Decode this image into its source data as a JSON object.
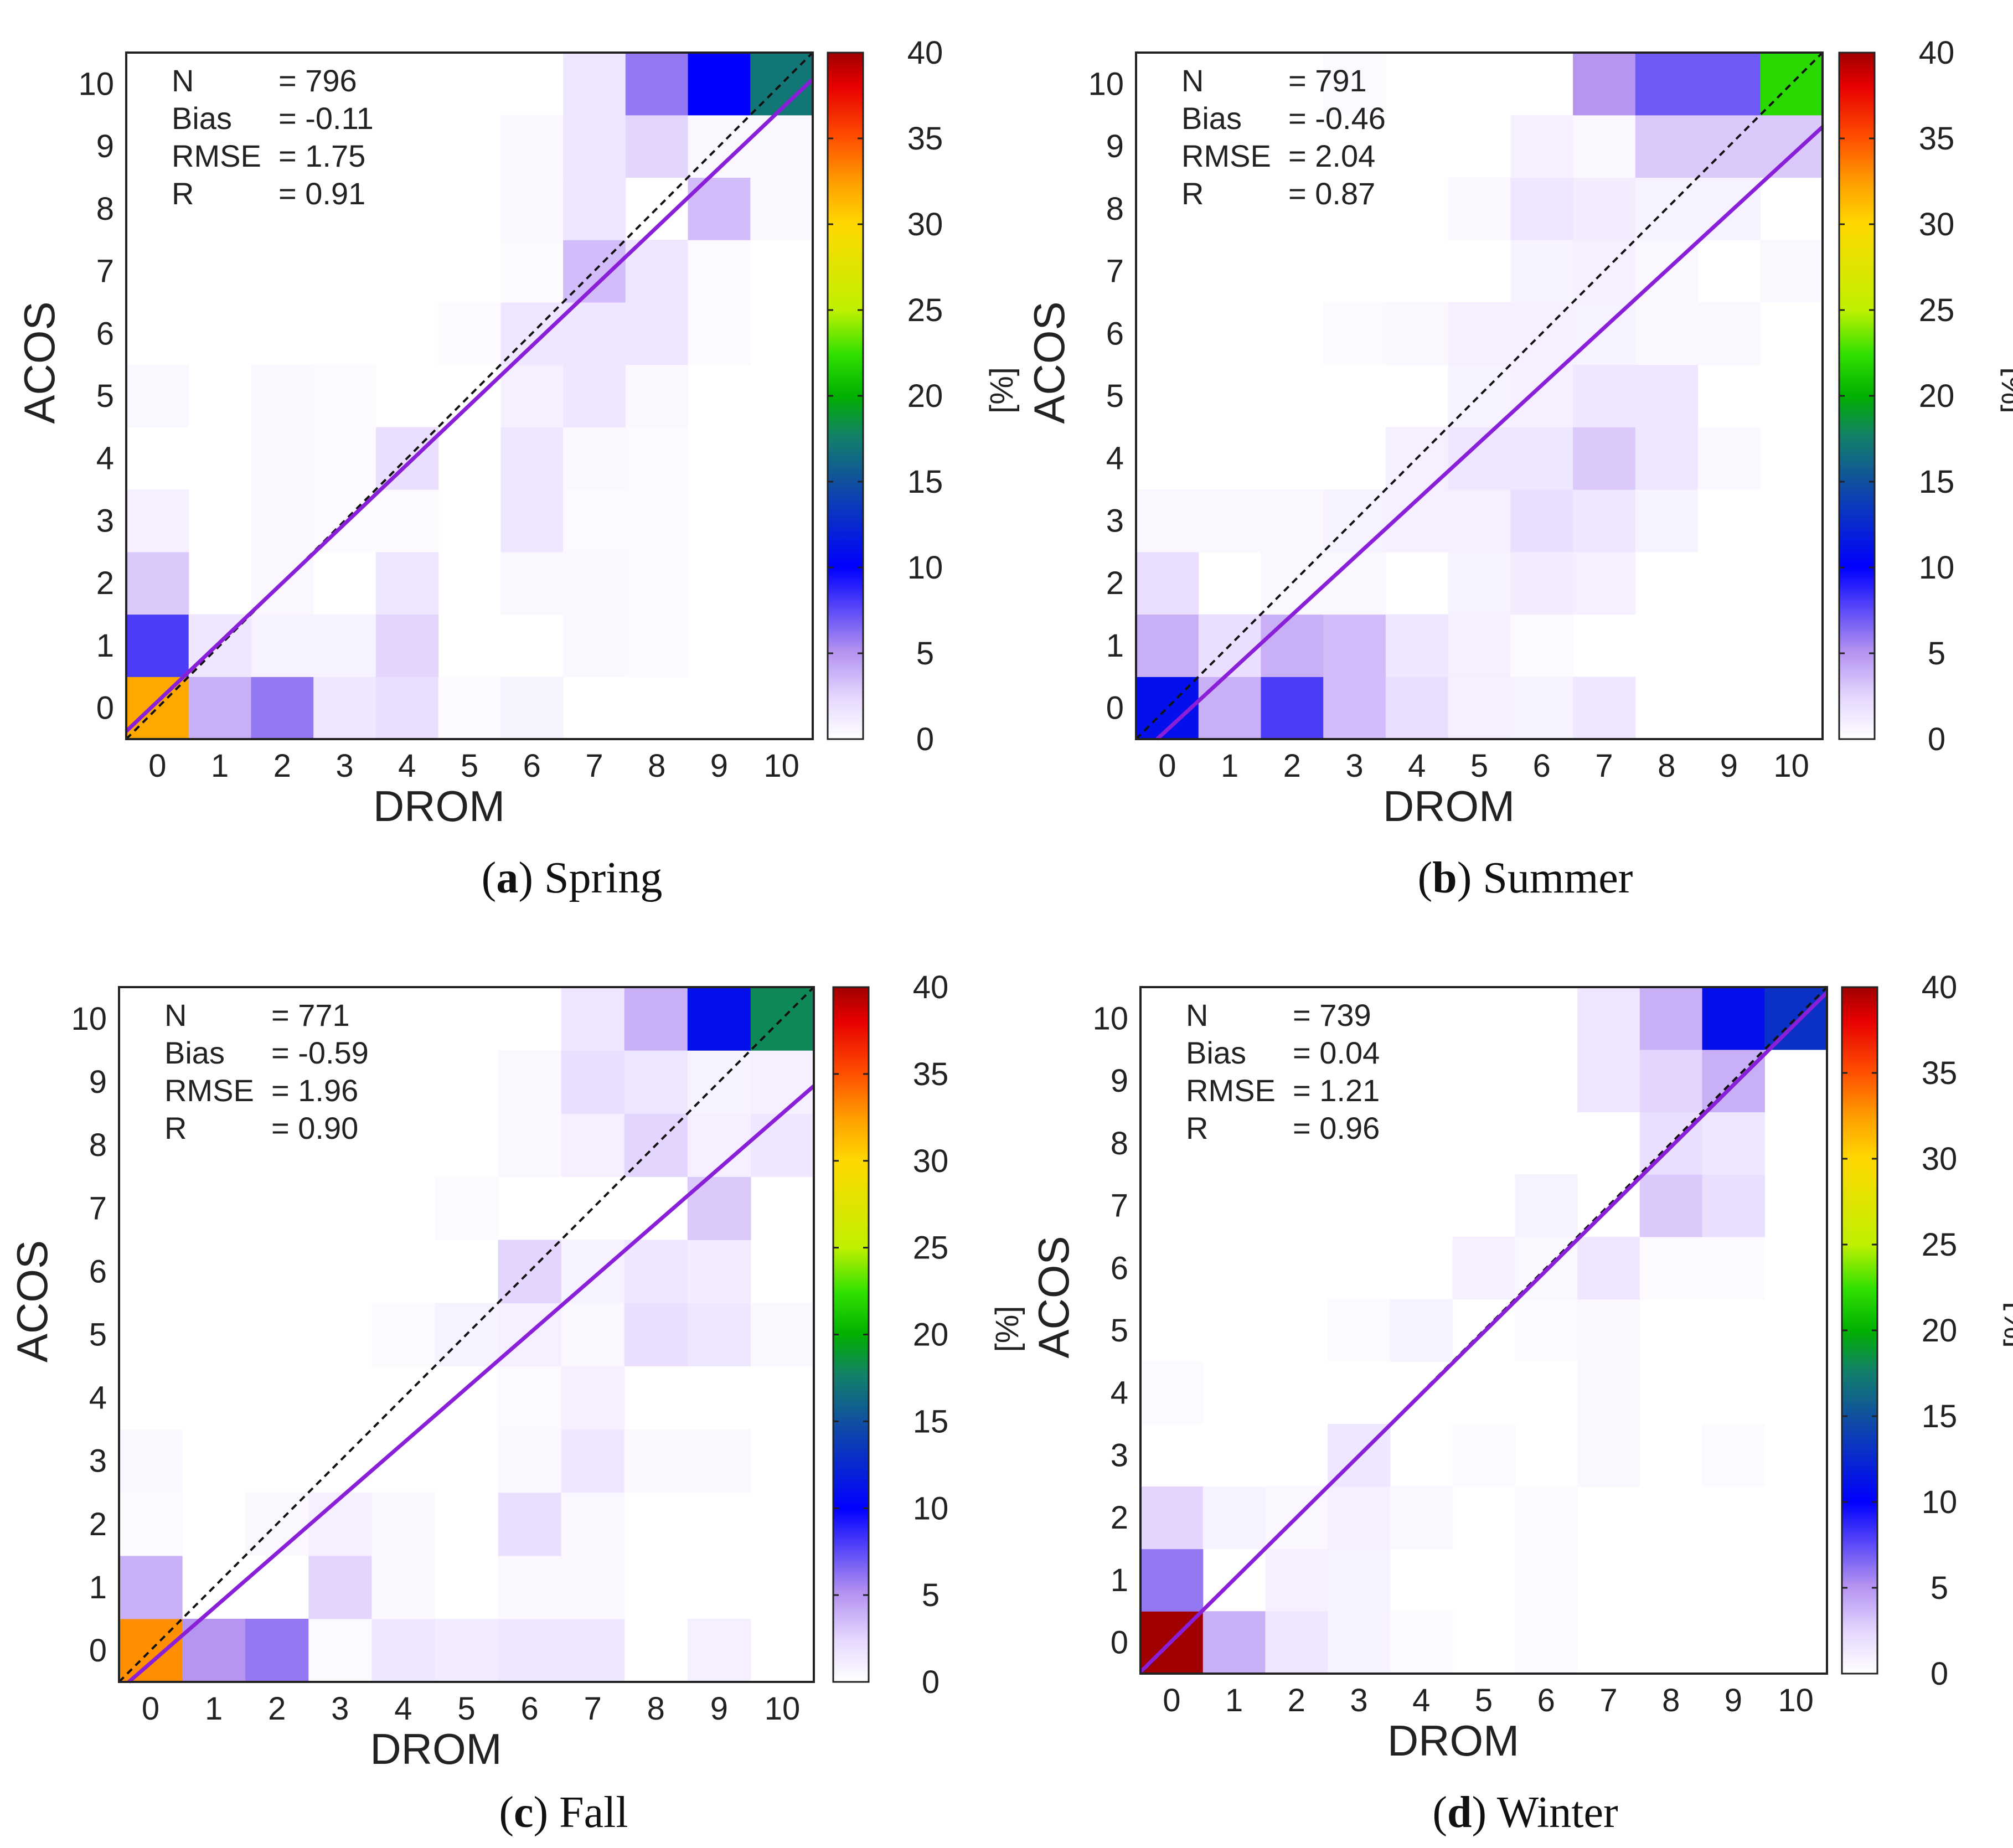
{
  "colorbar": {
    "ticks": [
      "0",
      "5",
      "10",
      "15",
      "20",
      "25",
      "30",
      "35",
      "40"
    ],
    "label": "[%]",
    "range": [
      0,
      40
    ]
  },
  "axis_ticks": [
    "0",
    "1",
    "2",
    "3",
    "4",
    "5",
    "6",
    "7",
    "8",
    "9",
    "10"
  ],
  "stat_labels": {
    "n": "N",
    "bias": "Bias",
    "rmse": "RMSE",
    "r": "R"
  },
  "chart_data": [
    {
      "type": "heatmap",
      "caption_letter": "a",
      "caption_name": "Spring",
      "xlabel": "DROM",
      "ylabel": "ACOS",
      "stats": {
        "n": "= 796",
        "bias": "= -0.11",
        "rmse": "= 1.75",
        "r": "= 0.91"
      },
      "fit": {
        "slope": 0.95,
        "intercept": 0.1
      },
      "cells": [
        [
          0,
          0,
          32
        ],
        [
          1,
          0,
          4
        ],
        [
          2,
          0,
          6
        ],
        [
          3,
          0,
          1.5
        ],
        [
          4,
          0,
          2
        ],
        [
          5,
          0,
          0.3
        ],
        [
          6,
          0,
          0.7
        ],
        [
          0,
          1,
          8
        ],
        [
          1,
          1,
          1.5
        ],
        [
          2,
          1,
          0.8
        ],
        [
          3,
          1,
          0.8
        ],
        [
          4,
          1,
          2.5
        ],
        [
          7,
          1,
          0.5
        ],
        [
          8,
          1,
          0.3
        ],
        [
          0,
          2,
          3
        ],
        [
          2,
          2,
          0.5
        ],
        [
          4,
          2,
          1.5
        ],
        [
          6,
          2,
          0.5
        ],
        [
          7,
          2,
          0.5
        ],
        [
          8,
          2,
          0.3
        ],
        [
          0,
          3,
          1
        ],
        [
          2,
          3,
          0.5
        ],
        [
          3,
          3,
          0.3
        ],
        [
          4,
          3,
          0.3
        ],
        [
          6,
          3,
          1.5
        ],
        [
          7,
          3,
          0.3
        ],
        [
          8,
          3,
          0.3
        ],
        [
          2,
          4,
          0.5
        ],
        [
          3,
          4,
          0.3
        ],
        [
          4,
          4,
          2
        ],
        [
          6,
          4,
          1.5
        ],
        [
          7,
          4,
          0.5
        ],
        [
          8,
          4,
          0.3
        ],
        [
          0,
          5,
          0.5
        ],
        [
          2,
          5,
          0.5
        ],
        [
          3,
          5,
          0.3
        ],
        [
          6,
          5,
          1
        ],
        [
          7,
          5,
          1.5
        ],
        [
          8,
          5,
          0.5
        ],
        [
          5,
          6,
          0.3
        ],
        [
          6,
          6,
          1.5
        ],
        [
          7,
          6,
          1.5
        ],
        [
          8,
          6,
          1.5
        ],
        [
          9,
          6,
          0.3
        ],
        [
          6,
          7,
          0.3
        ],
        [
          7,
          7,
          3.5
        ],
        [
          8,
          7,
          1.5
        ],
        [
          9,
          7,
          0.3
        ],
        [
          6,
          8,
          0.5
        ],
        [
          7,
          8,
          1.5
        ],
        [
          9,
          8,
          3.5
        ],
        [
          10,
          8,
          0.5
        ],
        [
          6,
          9,
          0.5
        ],
        [
          7,
          9,
          1.5
        ],
        [
          8,
          9,
          2.5
        ],
        [
          9,
          9,
          0.5
        ],
        [
          10,
          9,
          0.5
        ],
        [
          7,
          10,
          1.5
        ],
        [
          8,
          10,
          6
        ],
        [
          9,
          10,
          10
        ],
        [
          10,
          10,
          17
        ]
      ]
    },
    {
      "type": "heatmap",
      "caption_letter": "b",
      "caption_name": "Summer",
      "xlabel": "DROM",
      "ylabel": "ACOS",
      "stats": {
        "n": "= 791",
        "bias": "= -0.46",
        "rmse": "= 2.04",
        "r": "= 0.87"
      },
      "fit": {
        "slope": 0.92,
        "intercept": -0.35
      },
      "cells": [
        [
          0,
          0,
          11
        ],
        [
          1,
          0,
          4
        ],
        [
          2,
          0,
          8
        ],
        [
          3,
          0,
          3.5
        ],
        [
          4,
          0,
          2
        ],
        [
          5,
          0,
          1
        ],
        [
          6,
          0,
          0.8
        ],
        [
          7,
          0,
          1.5
        ],
        [
          0,
          1,
          4
        ],
        [
          1,
          1,
          2
        ],
        [
          2,
          1,
          4
        ],
        [
          3,
          1,
          3.5
        ],
        [
          4,
          1,
          1.5
        ],
        [
          5,
          1,
          1
        ],
        [
          6,
          1,
          0.3
        ],
        [
          0,
          2,
          2
        ],
        [
          2,
          2,
          0.5
        ],
        [
          3,
          2,
          0.5
        ],
        [
          5,
          2,
          0.8
        ],
        [
          6,
          2,
          1.2
        ],
        [
          7,
          2,
          1
        ],
        [
          0,
          3,
          0.5
        ],
        [
          1,
          3,
          0.5
        ],
        [
          2,
          3,
          0.5
        ],
        [
          3,
          3,
          0.8
        ],
        [
          4,
          3,
          1
        ],
        [
          5,
          3,
          1
        ],
        [
          6,
          3,
          2
        ],
        [
          7,
          3,
          1.5
        ],
        [
          8,
          3,
          0.8
        ],
        [
          4,
          4,
          1
        ],
        [
          5,
          4,
          1.5
        ],
        [
          6,
          4,
          1.5
        ],
        [
          7,
          4,
          3
        ],
        [
          8,
          4,
          1.5
        ],
        [
          9,
          4,
          0.5
        ],
        [
          5,
          5,
          0.8
        ],
        [
          6,
          5,
          1
        ],
        [
          7,
          5,
          1.5
        ],
        [
          8,
          5,
          1.5
        ],
        [
          3,
          6,
          0.3
        ],
        [
          4,
          6,
          0.5
        ],
        [
          5,
          6,
          1
        ],
        [
          6,
          6,
          1
        ],
        [
          7,
          6,
          0.8
        ],
        [
          8,
          6,
          0.5
        ],
        [
          9,
          6,
          0.5
        ],
        [
          6,
          7,
          0.8
        ],
        [
          7,
          7,
          1
        ],
        [
          8,
          7,
          0.5
        ],
        [
          10,
          7,
          0.5
        ],
        [
          5,
          8,
          0.5
        ],
        [
          6,
          8,
          1.5
        ],
        [
          7,
          8,
          1.2
        ],
        [
          8,
          8,
          0.8
        ],
        [
          9,
          8,
          0.8
        ],
        [
          6,
          9,
          1
        ],
        [
          7,
          9,
          0.5
        ],
        [
          8,
          9,
          3
        ],
        [
          9,
          9,
          3
        ],
        [
          10,
          9,
          3
        ],
        [
          3,
          10,
          0.3
        ],
        [
          7,
          10,
          5
        ],
        [
          8,
          10,
          7
        ],
        [
          9,
          10,
          7
        ],
        [
          10,
          10,
          22
        ]
      ]
    },
    {
      "type": "heatmap",
      "caption_letter": "c",
      "caption_name": "Fall",
      "xlabel": "DROM",
      "ylabel": "ACOS",
      "stats": {
        "n": "= 771",
        "bias": "= -0.59",
        "rmse": "= 1.96",
        "r": "= 0.90"
      },
      "fit": {
        "slope": 0.87,
        "intercept": -0.2
      },
      "cells": [
        [
          0,
          0,
          33
        ],
        [
          1,
          0,
          5
        ],
        [
          2,
          0,
          6
        ],
        [
          3,
          0,
          0.3
        ],
        [
          4,
          0,
          1.5
        ],
        [
          5,
          0,
          1.2
        ],
        [
          6,
          0,
          1.5
        ],
        [
          7,
          0,
          1.5
        ],
        [
          9,
          0,
          1
        ],
        [
          0,
          1,
          4
        ],
        [
          3,
          1,
          2.5
        ],
        [
          4,
          1,
          0.5
        ],
        [
          6,
          1,
          0.5
        ],
        [
          7,
          1,
          0.5
        ],
        [
          0,
          2,
          0.3
        ],
        [
          2,
          2,
          0.5
        ],
        [
          3,
          2,
          1
        ],
        [
          4,
          2,
          0.5
        ],
        [
          6,
          2,
          2
        ],
        [
          7,
          2,
          0.5
        ],
        [
          0,
          3,
          0.5
        ],
        [
          6,
          3,
          0.5
        ],
        [
          7,
          3,
          1.5
        ],
        [
          8,
          3,
          0.5
        ],
        [
          9,
          3,
          0.5
        ],
        [
          6,
          4,
          0.3
        ],
        [
          7,
          4,
          1
        ],
        [
          4,
          5,
          0.3
        ],
        [
          5,
          5,
          0.8
        ],
        [
          6,
          5,
          1
        ],
        [
          7,
          5,
          0.5
        ],
        [
          8,
          5,
          2
        ],
        [
          9,
          5,
          1.5
        ],
        [
          10,
          5,
          0.5
        ],
        [
          6,
          6,
          2.5
        ],
        [
          7,
          6,
          0.8
        ],
        [
          8,
          6,
          1.5
        ],
        [
          9,
          6,
          1.2
        ],
        [
          5,
          7,
          0.3
        ],
        [
          9,
          7,
          3
        ],
        [
          6,
          8,
          0.5
        ],
        [
          7,
          8,
          1
        ],
        [
          8,
          8,
          2.5
        ],
        [
          9,
          8,
          1
        ],
        [
          10,
          8,
          1.5
        ],
        [
          6,
          9,
          0.5
        ],
        [
          7,
          9,
          2
        ],
        [
          8,
          9,
          1.5
        ],
        [
          9,
          9,
          0.8
        ],
        [
          10,
          9,
          1
        ],
        [
          7,
          10,
          1.5
        ],
        [
          8,
          10,
          4
        ],
        [
          9,
          10,
          11
        ],
        [
          10,
          10,
          18
        ]
      ]
    },
    {
      "type": "heatmap",
      "caption_letter": "d",
      "caption_name": "Winter",
      "xlabel": "DROM",
      "ylabel": "ACOS",
      "stats": {
        "n": "= 739",
        "bias": "= 0.04",
        "rmse": "= 1.21",
        "r": "= 0.96"
      },
      "fit": {
        "slope": 0.99,
        "intercept": 0.02
      },
      "cells": [
        [
          0,
          0,
          40
        ],
        [
          1,
          0,
          4
        ],
        [
          2,
          0,
          1.5
        ],
        [
          3,
          0,
          0.8
        ],
        [
          4,
          0,
          0.3
        ],
        [
          6,
          0,
          0.3
        ],
        [
          0,
          1,
          6
        ],
        [
          2,
          1,
          1
        ],
        [
          3,
          1,
          0.8
        ],
        [
          6,
          1,
          0.3
        ],
        [
          0,
          2,
          2.5
        ],
        [
          1,
          2,
          0.8
        ],
        [
          2,
          2,
          0.5
        ],
        [
          3,
          2,
          1
        ],
        [
          4,
          2,
          0.5
        ],
        [
          6,
          2,
          0.3
        ],
        [
          3,
          3,
          1.5
        ],
        [
          5,
          3,
          0.3
        ],
        [
          7,
          3,
          0.5
        ],
        [
          9,
          3,
          0.3
        ],
        [
          0,
          4,
          0.3
        ],
        [
          7,
          4,
          0.5
        ],
        [
          3,
          5,
          0.3
        ],
        [
          4,
          5,
          0.8
        ],
        [
          6,
          5,
          0.3
        ],
        [
          7,
          5,
          0.5
        ],
        [
          5,
          6,
          1
        ],
        [
          6,
          6,
          0.5
        ],
        [
          7,
          6,
          1.5
        ],
        [
          8,
          6,
          0.3
        ],
        [
          9,
          6,
          0.3
        ],
        [
          6,
          7,
          0.8
        ],
        [
          8,
          7,
          3
        ],
        [
          9,
          7,
          2
        ],
        [
          8,
          8,
          2
        ],
        [
          9,
          8,
          1.5
        ],
        [
          7,
          9,
          1.5
        ],
        [
          8,
          9,
          2.5
        ],
        [
          9,
          9,
          4
        ],
        [
          7,
          10,
          1.5
        ],
        [
          8,
          10,
          4
        ],
        [
          9,
          10,
          11
        ],
        [
          10,
          10,
          13
        ]
      ]
    }
  ]
}
